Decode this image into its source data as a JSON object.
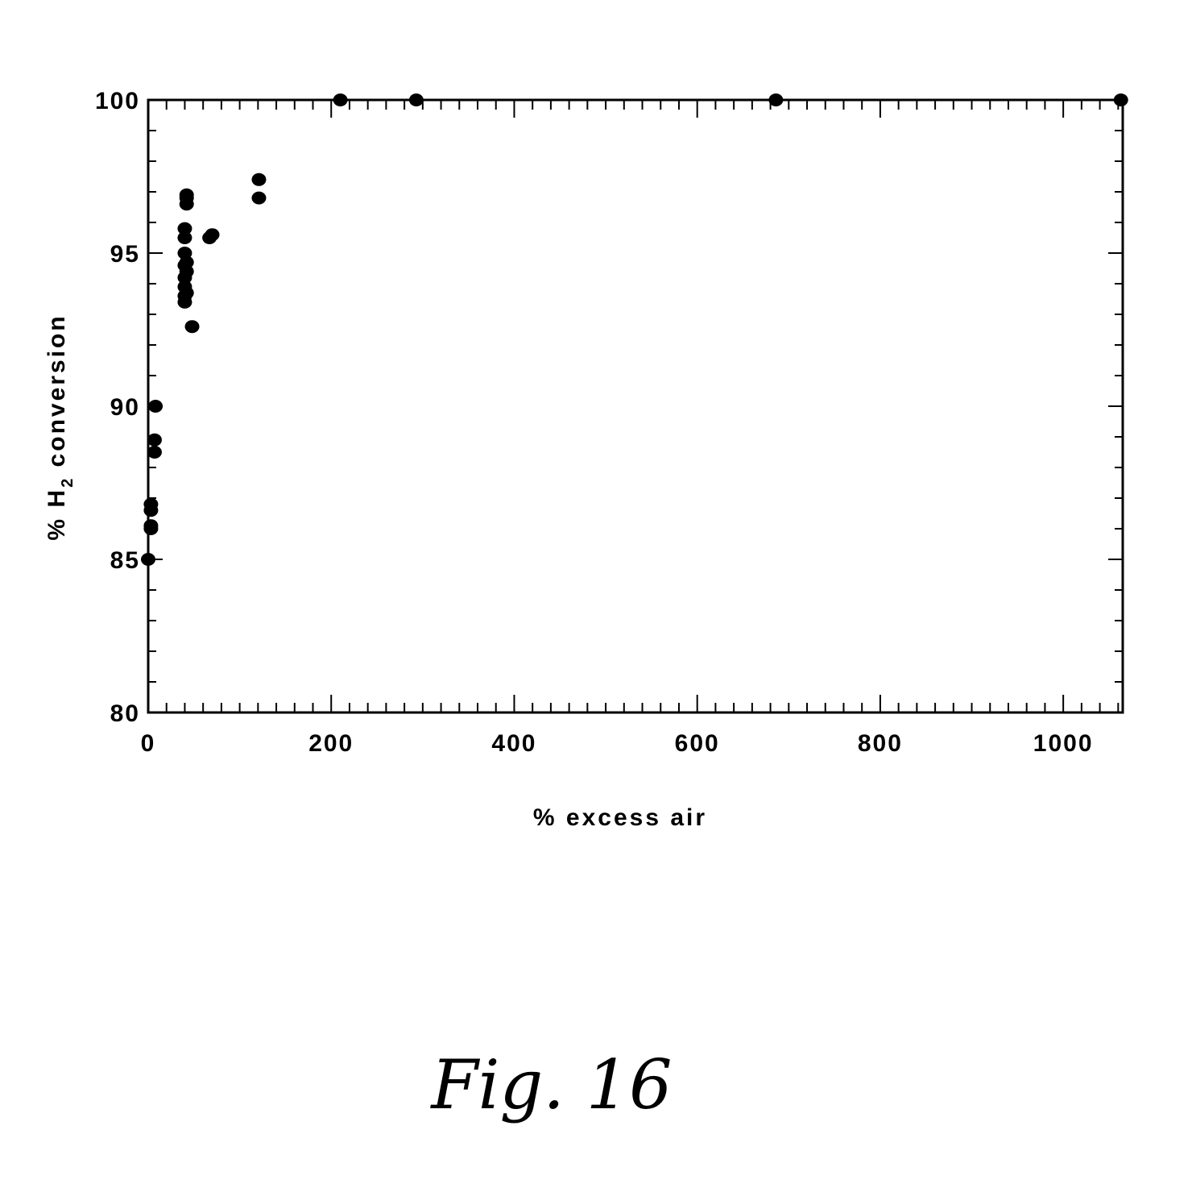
{
  "chart_data": {
    "type": "scatter",
    "xlabel": "% excess air",
    "ylabel": {
      "prefix": "% H",
      "subscript": "2",
      "suffix": " conversion"
    },
    "xlim": [
      0,
      1065
    ],
    "ylim": [
      80,
      100
    ],
    "x_ticks": [
      "0",
      "200",
      "400",
      "600",
      "800",
      "1000"
    ],
    "y_ticks": [
      "80",
      "85",
      "90",
      "95",
      "100"
    ],
    "grid": false,
    "legend": "none",
    "marker_color": "#000000",
    "series": [
      {
        "points": [
          {
            "x": 0,
            "y": 85.0
          },
          {
            "x": 3,
            "y": 86.0
          },
          {
            "x": 3,
            "y": 86.1
          },
          {
            "x": 3,
            "y": 86.6
          },
          {
            "x": 3,
            "y": 86.8
          },
          {
            "x": 7,
            "y": 88.5
          },
          {
            "x": 7,
            "y": 88.9
          },
          {
            "x": 8,
            "y": 90.0
          },
          {
            "x": 40,
            "y": 93.4
          },
          {
            "x": 40,
            "y": 93.6
          },
          {
            "x": 40,
            "y": 93.9
          },
          {
            "x": 40,
            "y": 94.2
          },
          {
            "x": 40,
            "y": 94.6
          },
          {
            "x": 40,
            "y": 95.0
          },
          {
            "x": 40,
            "y": 95.5
          },
          {
            "x": 40,
            "y": 95.8
          },
          {
            "x": 42,
            "y": 93.7
          },
          {
            "x": 42,
            "y": 94.4
          },
          {
            "x": 42,
            "y": 94.7
          },
          {
            "x": 42,
            "y": 96.6
          },
          {
            "x": 42,
            "y": 96.8
          },
          {
            "x": 42,
            "y": 96.9
          },
          {
            "x": 48,
            "y": 92.6
          },
          {
            "x": 67,
            "y": 95.5
          },
          {
            "x": 70,
            "y": 95.6
          },
          {
            "x": 121,
            "y": 96.8
          },
          {
            "x": 121,
            "y": 97.4
          },
          {
            "x": 210,
            "y": 100.0
          },
          {
            "x": 293,
            "y": 100.0
          },
          {
            "x": 686,
            "y": 100.0
          },
          {
            "x": 1063,
            "y": 100.0
          }
        ]
      }
    ]
  },
  "caption": "Fig. 16"
}
